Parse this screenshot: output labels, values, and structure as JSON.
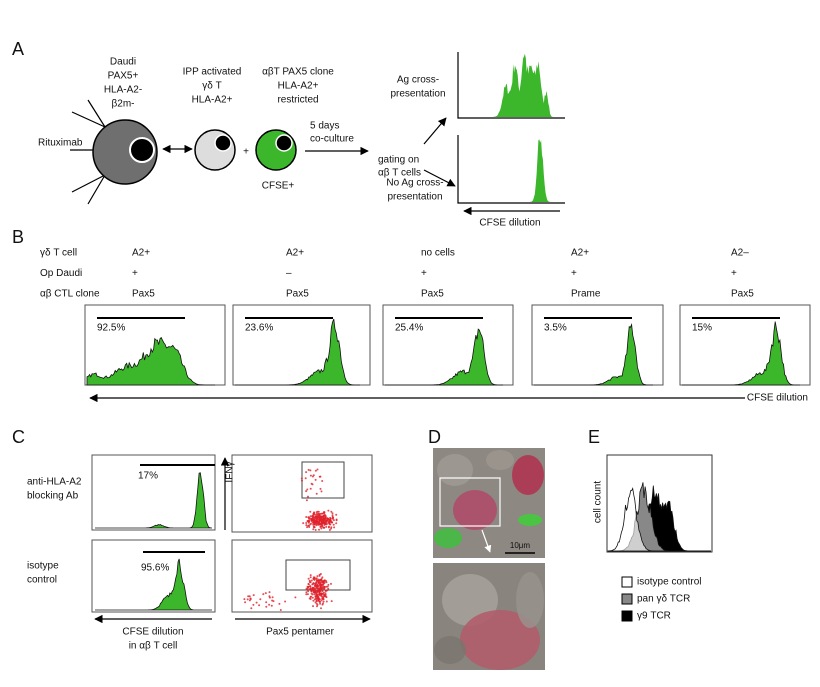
{
  "panel_a": {
    "label": "A",
    "daudi": [
      "Daudi",
      "PAX5+",
      "HLA-A2-",
      "β2m-"
    ],
    "rituximab": "Rituximab",
    "gd_cell": [
      "IPP activated",
      "γδ T",
      "HLA-A2+"
    ],
    "plus": "+",
    "ab_clone": [
      "αβT PAX5 clone",
      "HLA-A2+",
      "restricted"
    ],
    "cfse": "CFSE+",
    "coculture": [
      "5 days",
      "co-culture"
    ],
    "gating": [
      "gating on",
      "αβ T cells"
    ],
    "ag": [
      "Ag cross-",
      "presentation"
    ],
    "no_ag": [
      "No Ag cross-",
      "presentation"
    ],
    "axis": "CFSE dilution"
  },
  "panel_b": {
    "label": "B",
    "row_labels": [
      "γδ T cell",
      "Op Daudi",
      "αβ CTL clone"
    ],
    "columns": [
      {
        "gd_t_cell": "A2+",
        "op_daudi": "+",
        "ctl_clone": "Pax5",
        "percent": "92.5%"
      },
      {
        "gd_t_cell": "A2+",
        "op_daudi": "–",
        "ctl_clone": "Pax5",
        "percent": "23.6%"
      },
      {
        "gd_t_cell": "no cells",
        "op_daudi": "+",
        "ctl_clone": "Pax5",
        "percent": "25.4%"
      },
      {
        "gd_t_cell": "A2+",
        "op_daudi": "+",
        "ctl_clone": "Prame",
        "percent": "3.5%"
      },
      {
        "gd_t_cell": "A2–",
        "op_daudi": "+",
        "ctl_clone": "Pax5",
        "percent": "15%"
      }
    ],
    "axis": "CFSE dilution"
  },
  "panel_c": {
    "label": "C",
    "conditions": [
      {
        "label": [
          "anti-HLA-A2",
          "blocking Ab"
        ],
        "percent": "17%"
      },
      {
        "label": [
          "isotype",
          "control"
        ],
        "percent": "95.6%"
      }
    ],
    "x_axis": [
      "CFSE dilution",
      "in αβ T cell"
    ],
    "dot_y_axis": "IFNγ",
    "dot_x_axis": "Pax5 pentamer"
  },
  "panel_d": {
    "label": "D",
    "scale_bar": "10μm"
  },
  "panel_e": {
    "label": "E",
    "y_axis": "cell count",
    "legend": [
      "isotype control",
      "pan γδ TCR",
      "γ9 TCR"
    ]
  }
}
